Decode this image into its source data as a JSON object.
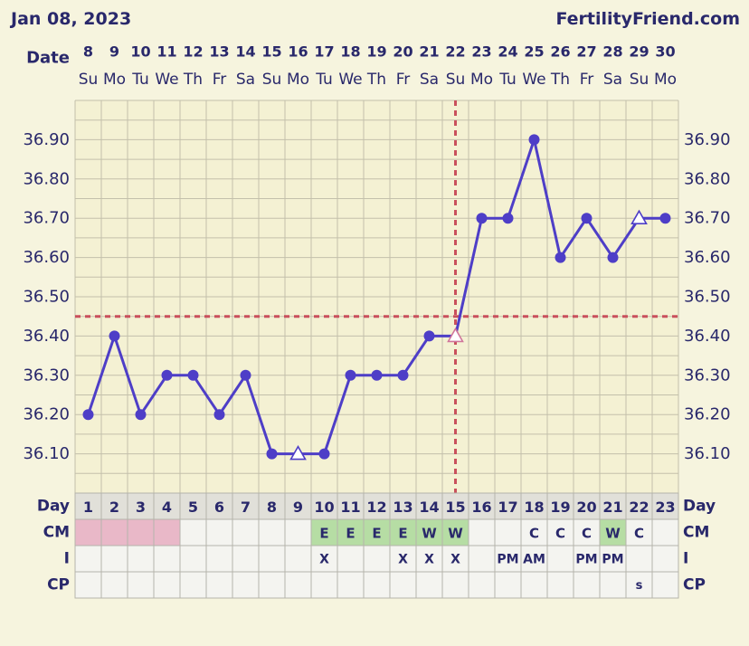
{
  "header": {
    "date": "Jan 08, 2023",
    "site": "FertilityFriend.com"
  },
  "chart_data": {
    "type": "line",
    "x": [
      1,
      2,
      3,
      4,
      5,
      6,
      7,
      8,
      9,
      10,
      11,
      12,
      13,
      14,
      15,
      16,
      17,
      18,
      19,
      20,
      21,
      22,
      23
    ],
    "dates": [
      "8",
      "9",
      "10",
      "11",
      "12",
      "13",
      "14",
      "15",
      "16",
      "17",
      "18",
      "19",
      "20",
      "21",
      "22",
      "23",
      "24",
      "25",
      "26",
      "27",
      "28",
      "29",
      "30"
    ],
    "weekdays": [
      "Su",
      "Mo",
      "Tu",
      "We",
      "Th",
      "Fr",
      "Sa",
      "Su",
      "Mo",
      "Tu",
      "We",
      "Th",
      "Fr",
      "Sa",
      "Su",
      "Mo",
      "Tu",
      "We",
      "Th",
      "Fr",
      "Sa",
      "Su",
      "Mo"
    ],
    "ylim": [
      36.0,
      37.0
    ],
    "y_ticks": [
      "36.90",
      "36.80",
      "36.70",
      "36.60",
      "36.50",
      "36.40",
      "36.30",
      "36.20",
      "36.10"
    ],
    "grid": true,
    "series": [
      {
        "values": [
          36.2,
          36.4,
          36.2,
          36.3,
          36.3,
          36.2,
          36.3,
          36.1,
          36.1,
          36.1,
          36.3,
          36.3,
          36.3,
          36.4,
          36.4,
          36.7,
          36.7,
          36.9,
          36.6,
          36.7,
          36.6,
          36.7,
          36.7
        ],
        "markers": [
          "circle",
          "circle",
          "circle",
          "circle",
          "circle",
          "circle",
          "circle",
          "circle",
          "triangle",
          "circle",
          "circle",
          "circle",
          "circle",
          "circle",
          "triangle",
          "circle",
          "circle",
          "circle",
          "circle",
          "circle",
          "circle",
          "triangle",
          "circle"
        ]
      }
    ],
    "coverline": 36.45,
    "ovulation_day": 15
  },
  "table": {
    "labels": {
      "date": "Date",
      "day": "Day",
      "cm": "CM",
      "i": "I",
      "cp": "CP"
    },
    "cm": [
      "",
      "",
      "",
      "",
      "",
      "",
      "",
      "",
      "",
      "E",
      "E",
      "E",
      "E",
      "W",
      "W",
      "",
      "",
      "C",
      "C",
      "C",
      "W",
      "C",
      ""
    ],
    "cm_fill": [
      "#e9b8c8",
      "#e9b8c8",
      "#e9b8c8",
      "#e9b8c8",
      "",
      "",
      "",
      "",
      "",
      "#b6dda4",
      "#b6dda4",
      "#b6dda4",
      "#b6dda4",
      "#b6dda4",
      "#b6dda4",
      "",
      "",
      "",
      "",
      "",
      "#b6dda4",
      "",
      ""
    ],
    "i": [
      "",
      "",
      "",
      "",
      "",
      "",
      "",
      "",
      "",
      "X",
      "",
      "",
      "X",
      "X",
      "X",
      "",
      "PM",
      "AM",
      "",
      "PM",
      "PM",
      "",
      ""
    ],
    "cp": [
      "",
      "",
      "",
      "",
      "",
      "",
      "",
      "",
      "",
      "",
      "",
      "",
      "",
      "",
      "",
      "",
      "",
      "",
      "",
      "",
      "",
      "s",
      ""
    ]
  },
  "colors": {
    "background": "#f6f4de",
    "plot": "#f4f1d3",
    "grid": "#c3c0ab",
    "text": "#29286b",
    "line": "#4e3ec7",
    "marker_open_fill": "#ffffff",
    "marker_highlight": "#d0759a",
    "reference": "#c9505c",
    "day_row": "#e1e0d9",
    "cell": "#f4f4f0",
    "cell_border": "#b5b4ab"
  }
}
